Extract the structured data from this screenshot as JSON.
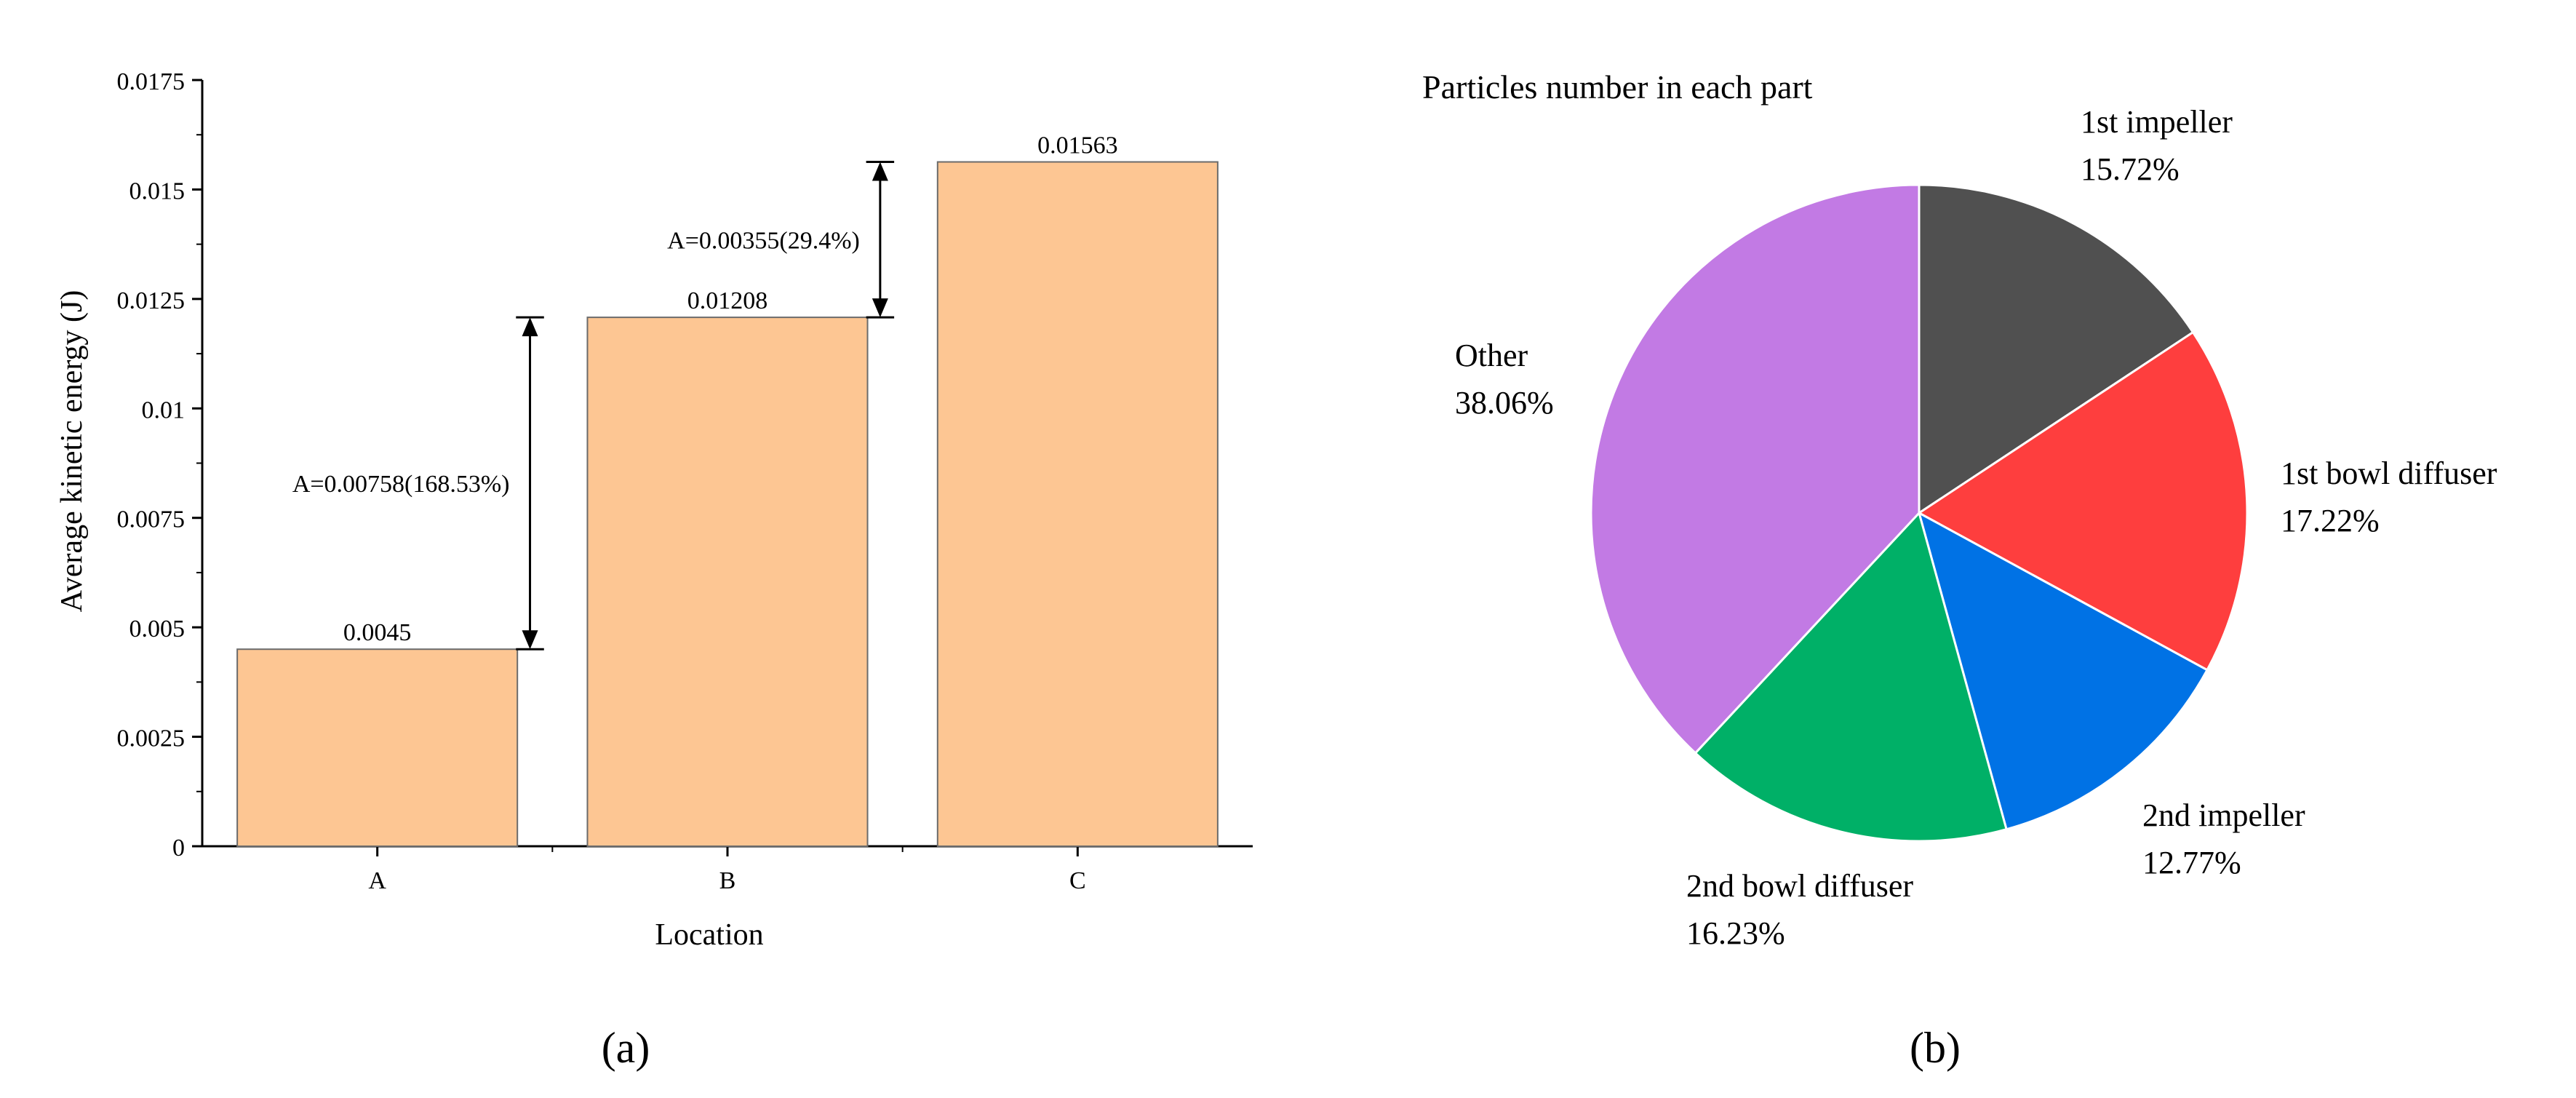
{
  "chart_data": [
    {
      "type": "bar",
      "panel_label": "(a)",
      "categories": [
        "A",
        "B",
        "C"
      ],
      "values": [
        0.0045,
        0.01208,
        0.01563
      ],
      "data_labels": [
        "0.0045",
        "0.01208",
        "0.01563"
      ],
      "xlabel": "Location",
      "ylabel": "Average kinetic energy (J)",
      "ylim": [
        0,
        0.0175
      ],
      "yticks": [
        0,
        0.0025,
        0.005,
        0.0075,
        0.01,
        0.0125,
        0.015,
        0.0175
      ],
      "ytick_labels": [
        "0",
        "0.0025",
        "0.005",
        "0.0075",
        "0.01",
        "0.0125",
        "0.015",
        "0.0175"
      ],
      "bar_color": "#fdc693",
      "annotations": [
        {
          "from": 0.0045,
          "to": 0.01208,
          "text": "A=0.00758(168.53%)"
        },
        {
          "from": 0.01208,
          "to": 0.01563,
          "text": "A=0.00355(29.4%)"
        }
      ]
    },
    {
      "type": "pie",
      "panel_label": "(b)",
      "title": "Particles number in each part",
      "slices": [
        {
          "name": "1st impeller",
          "value": 15.72,
          "label": "15.72%",
          "color": "#505050"
        },
        {
          "name": "1st bowl diffuser",
          "value": 17.22,
          "label": "17.22%",
          "color": "#fe3e3e"
        },
        {
          "name": "2nd impeller",
          "value": 12.77,
          "label": "12.77%",
          "color": "#0072e5"
        },
        {
          "name": "2nd bowl diffuser",
          "value": 16.23,
          "label": "16.23%",
          "color": "#00b067"
        },
        {
          "name": "Other",
          "value": 38.06,
          "label": "38.06%",
          "color": "#c27ae4"
        }
      ]
    }
  ]
}
